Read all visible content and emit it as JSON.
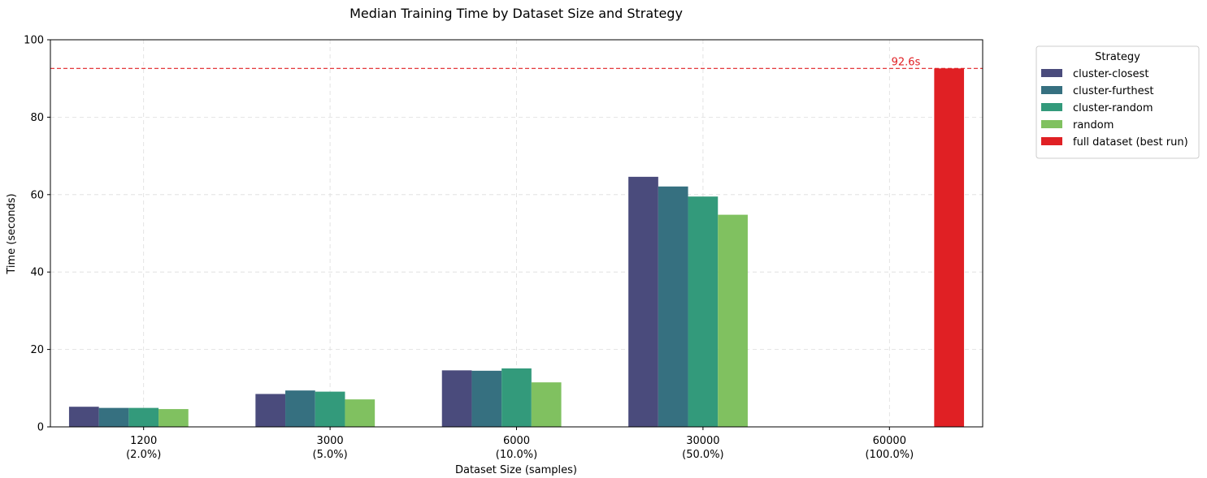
{
  "chart_data": {
    "type": "bar",
    "title": "Median Training Time by Dataset Size and Strategy",
    "xlabel": "Dataset Size (samples)",
    "ylabel": "Time (seconds)",
    "ylim": [
      0,
      100
    ],
    "yticks": [
      0,
      20,
      40,
      60,
      80,
      100
    ],
    "grid": true,
    "categories": [
      {
        "size": "60000",
        "pct": "(100.0%)"
      },
      {
        "size": "1200",
        "pct": "(2.0%)"
      },
      {
        "size": "3000",
        "pct": "(5.0%)"
      },
      {
        "size": "6000",
        "pct": "(10.0%)"
      },
      {
        "size": "30000",
        "pct": "(50.0%)"
      }
    ],
    "series": [
      {
        "name": "cluster-closest",
        "color": "#4a4b7c",
        "values": [
          null,
          5.2,
          8.5,
          14.6,
          64.6
        ]
      },
      {
        "name": "cluster-furthest",
        "color": "#367080",
        "values": [
          null,
          4.9,
          9.4,
          14.5,
          62.1
        ]
      },
      {
        "name": "cluster-random",
        "color": "#339a7b",
        "values": [
          null,
          4.9,
          9.1,
          15.1,
          59.5
        ]
      },
      {
        "name": "random",
        "color": "#80c160",
        "values": [
          null,
          4.6,
          7.1,
          11.5,
          54.8
        ]
      },
      {
        "name": "full dataset (best run)",
        "color": "#e02024",
        "values": [
          92.6,
          null,
          null,
          null,
          null
        ]
      }
    ],
    "reference_line": {
      "value": 92.6,
      "label": "92.6s",
      "color": "#e02024"
    },
    "legend": {
      "title": "Strategy",
      "placement": "outside-top-right"
    }
  }
}
